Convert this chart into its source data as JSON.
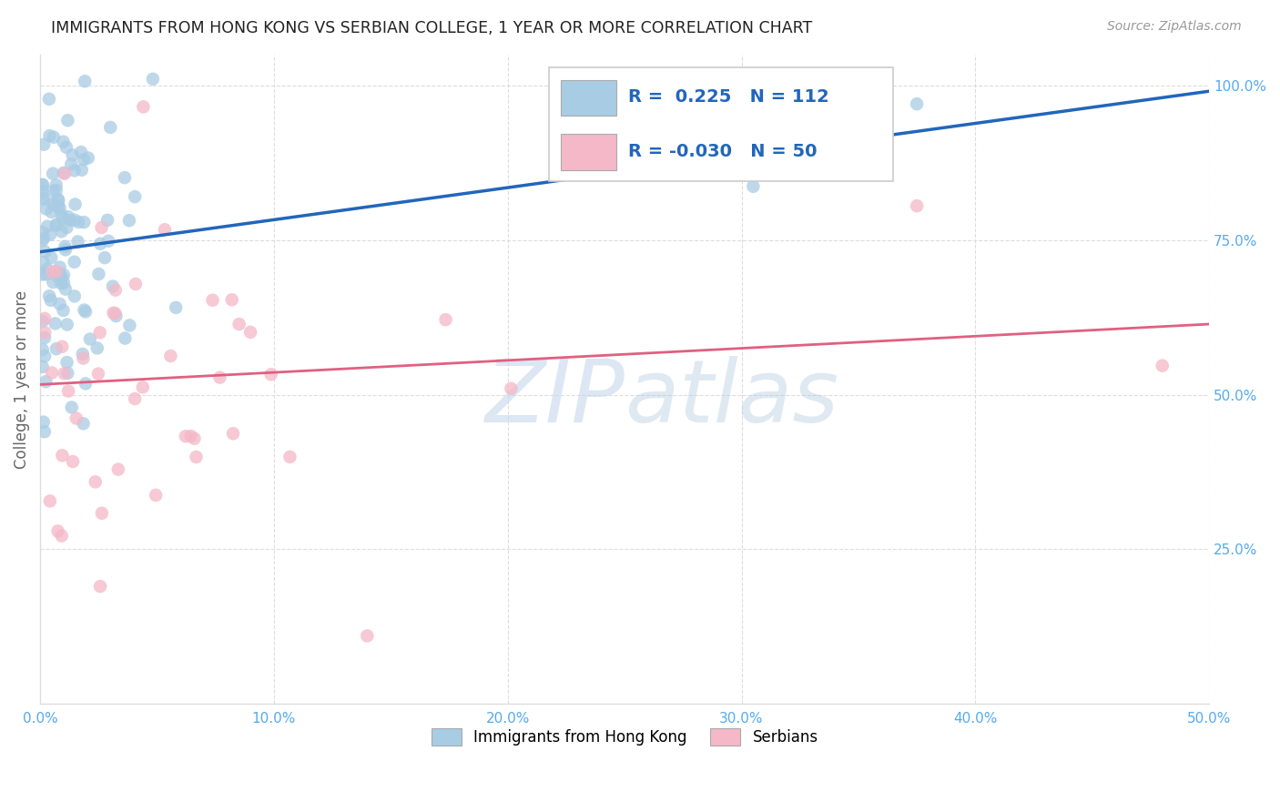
{
  "title": "IMMIGRANTS FROM HONG KONG VS SERBIAN COLLEGE, 1 YEAR OR MORE CORRELATION CHART",
  "source": "Source: ZipAtlas.com",
  "ylabel": "College, 1 year or more",
  "xlim": [
    0.0,
    0.5
  ],
  "ylim": [
    0.0,
    1.05
  ],
  "xtick_labels": [
    "0.0%",
    "10.0%",
    "20.0%",
    "30.0%",
    "40.0%",
    "50.0%"
  ],
  "xtick_vals": [
    0.0,
    0.1,
    0.2,
    0.3,
    0.4,
    0.5
  ],
  "ytick_labels_right": [
    "25.0%",
    "50.0%",
    "75.0%",
    "100.0%"
  ],
  "ytick_vals_right": [
    0.25,
    0.5,
    0.75,
    1.0
  ],
  "watermark": "ZIPatlas",
  "hk_color": "#a8cce4",
  "sr_color": "#f4b8c8",
  "hk_line_color": "#2266bb",
  "sr_line_color": "#e06080",
  "background_color": "#ffffff",
  "grid_color": "#dddddd",
  "tick_color": "#55aaee",
  "legend_text_color": "#2266bb",
  "title_color": "#222222",
  "source_color": "#999999",
  "ylabel_color": "#666666"
}
